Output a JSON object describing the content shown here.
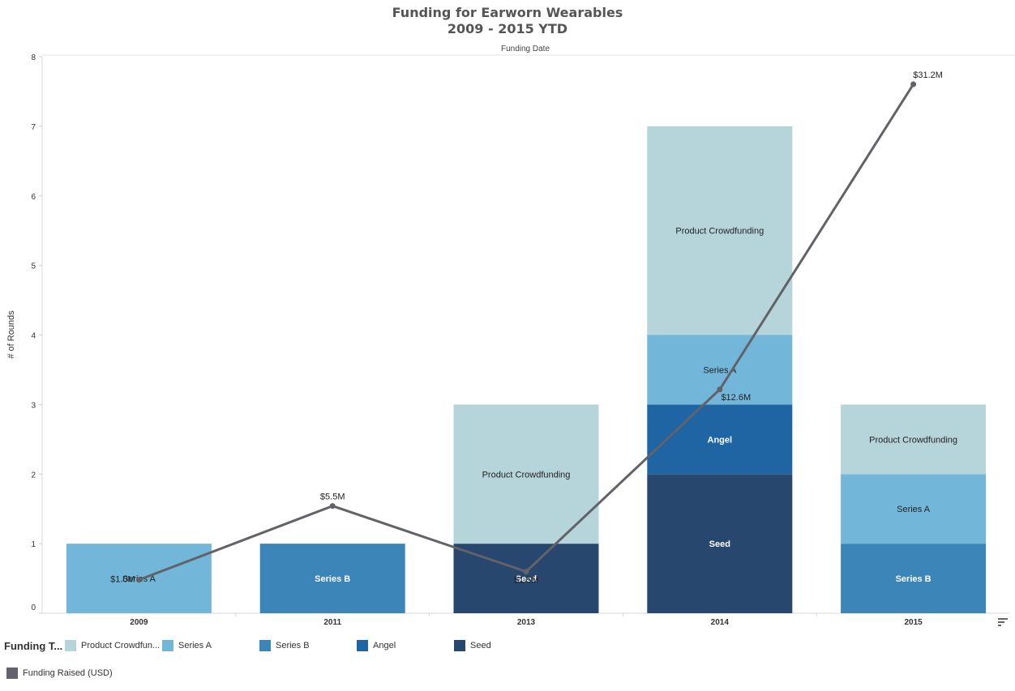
{
  "chart_data": {
    "type": "bar",
    "title": "Funding for Earworn Wearables",
    "subtitle": "2009 - 2015 YTD",
    "top_axis_label": "Funding Date",
    "ylabel": "# of Rounds",
    "ylim": [
      0,
      8
    ],
    "yticks": [
      "0",
      "1",
      "2",
      "3",
      "4",
      "5",
      "6",
      "7",
      "8"
    ],
    "categories": [
      "2009",
      "2011",
      "2013",
      "2014",
      "2015"
    ],
    "stacked": true,
    "series": [
      {
        "name": "Seed",
        "color": "#27476e",
        "label_color": "#ffffff",
        "label_bold": true,
        "values": [
          0,
          0,
          1,
          2,
          0
        ]
      },
      {
        "name": "Angel",
        "color": "#1f65a4",
        "label_color": "#ffffff",
        "label_bold": true,
        "values": [
          0,
          0,
          0,
          1,
          0
        ]
      },
      {
        "name": "Series B",
        "color": "#3c85b8",
        "label_color": "#ffffff",
        "label_bold": true,
        "values": [
          0,
          1,
          0,
          0,
          1
        ]
      },
      {
        "name": "Series A",
        "color": "#72b7da",
        "label_color": "#222222",
        "label_bold": false,
        "values": [
          1,
          0,
          0,
          1,
          1
        ]
      },
      {
        "name": "Product Crowdfunding",
        "color": "#b6d5da",
        "label_color": "#222222",
        "label_bold": false,
        "values": [
          0,
          0,
          2,
          3,
          1
        ]
      }
    ],
    "line_series": {
      "name": "Funding Raised (USD)",
      "color": "#636268",
      "values_musd": [
        1.0,
        5.5,
        1.5,
        12.6,
        31.2
      ],
      "labels": [
        "$1.0M",
        "$5.5M",
        "$1.5M",
        "$12.6M",
        "$31.2M"
      ],
      "secondary_axis_shown": false
    }
  },
  "legend": {
    "title": "Funding T...",
    "items": [
      {
        "label": "Product Crowdfun...",
        "color": "#b6d5da"
      },
      {
        "label": "Series A",
        "color": "#72b7da"
      },
      {
        "label": "Series B",
        "color": "#3c85b8"
      },
      {
        "label": "Angel",
        "color": "#1f65a4"
      },
      {
        "label": "Seed",
        "color": "#27476e"
      }
    ],
    "line_item": {
      "label": "Funding Raised (USD)",
      "color": "#636268"
    }
  },
  "icons": {
    "sort": "sort-descending-icon"
  }
}
